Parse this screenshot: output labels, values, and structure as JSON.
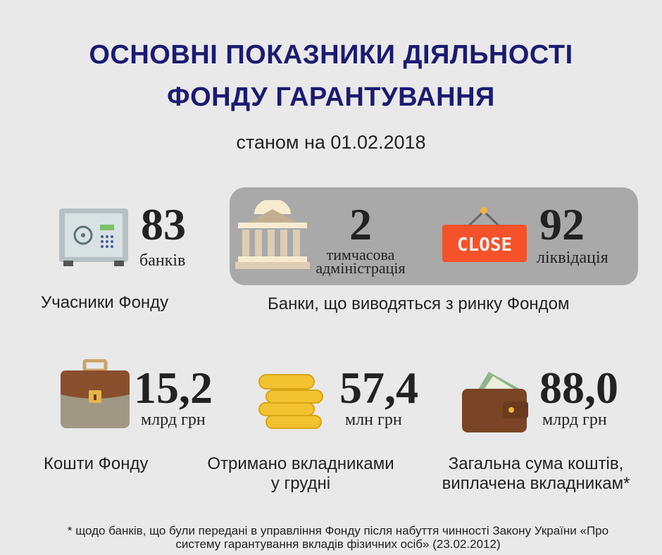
{
  "header": {
    "title_line1": "ОСНОВНІ ПОКАЗНИКИ ДІЯЛЬНОСТІ",
    "title_line2": "ФОНДУ ГАРАНТУВАННЯ",
    "subtitle": "станом на 01.02.2018"
  },
  "members": {
    "value": "83",
    "unit": "банків",
    "label": "Учасники Фонду",
    "icon": "safe-icon"
  },
  "withdrawn": {
    "label": "Банки, що виводяться з ринку Фондом",
    "temporary": {
      "value": "2",
      "unit_line1": "тимчасова",
      "unit_line2": "адміністрація",
      "icon": "bank-building-icon"
    },
    "liquidation": {
      "value": "92",
      "unit": "ліквідація",
      "icon": "close-sign-icon",
      "sign_text": "CLOSE"
    }
  },
  "funds": {
    "value": "15,2",
    "unit": "млрд грн",
    "label": "Кошти Фонду",
    "icon": "briefcase-icon"
  },
  "received": {
    "value": "57,4",
    "unit": "млн грн",
    "label_line1": "Отримано вкладниками",
    "label_line2": "у грудні",
    "icon": "coins-icon"
  },
  "total": {
    "value": "88,0",
    "unit": "млрд грн",
    "label_line1": "Загальна сума коштів,",
    "label_line2": "виплачена вкладникам*",
    "icon": "wallet-icon"
  },
  "footnote": {
    "line1": "* щодо банків, що були передані в управління Фонду після набуття чинності Закону України «Про",
    "line2": "систему гарантування вкладів фізичних осіб» (23.02.2012)"
  },
  "colors": {
    "title": "#1b1b72",
    "panel": "#a9a9a9",
    "background": "#e9e9e9",
    "close_sign": "#f5522a"
  }
}
